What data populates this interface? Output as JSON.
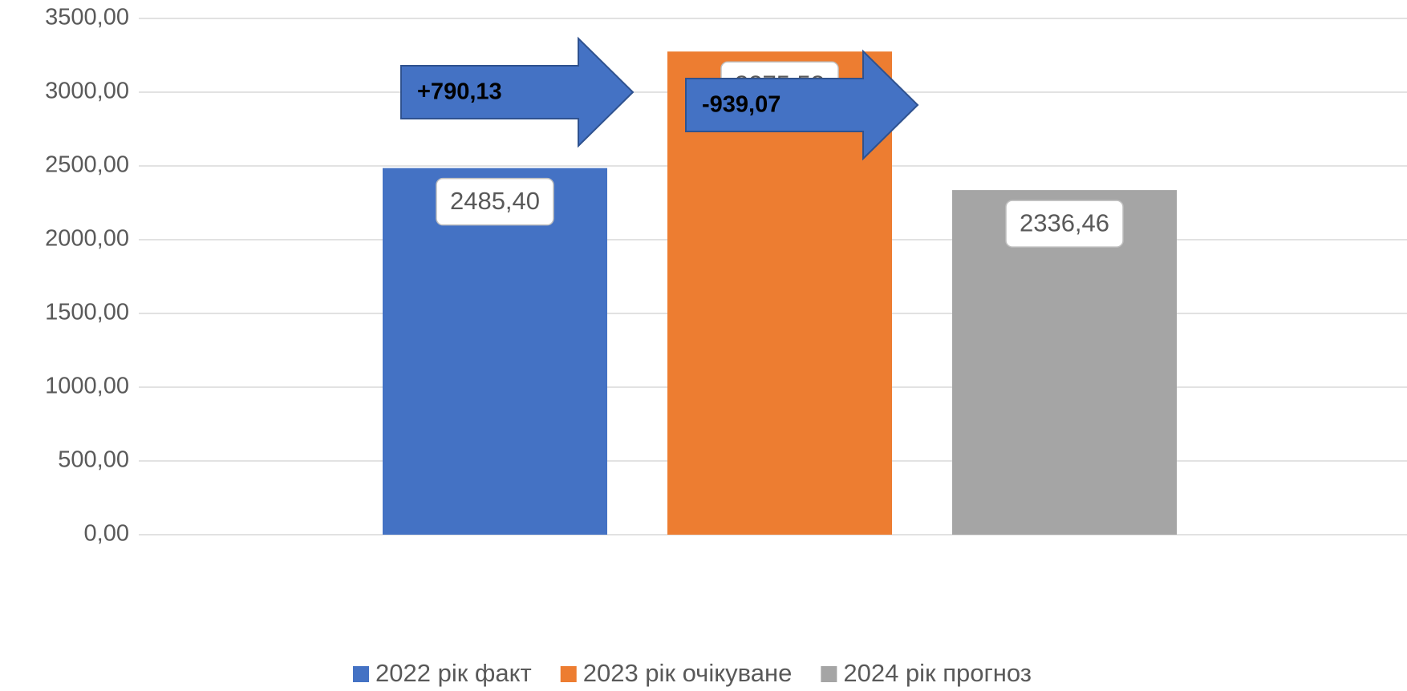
{
  "chart_data": {
    "type": "bar",
    "series": [
      {
        "name": "2022 рік факт",
        "color": "#4472c4",
        "values": [
          2485.4
        ],
        "value_labels": [
          "2485,40"
        ]
      },
      {
        "name": "2023 рік очікуване",
        "color": "#ed7d31",
        "values": [
          3275.53
        ],
        "value_labels": [
          "3275,53"
        ]
      },
      {
        "name": "2024 рік прогноз",
        "color": "#a5a5a5",
        "values": [
          2336.46
        ],
        "value_labels": [
          "2336,46"
        ]
      }
    ],
    "annotations": [
      "+790,13",
      "-939,07"
    ],
    "ylim": [
      0,
      3500
    ],
    "yticks": [
      {
        "value": 0,
        "label": "0,00"
      },
      {
        "value": 500,
        "label": "500,00"
      },
      {
        "value": 1000,
        "label": "1000,00"
      },
      {
        "value": 1500,
        "label": "1500,00"
      },
      {
        "value": 2000,
        "label": "2000,00"
      },
      {
        "value": 2500,
        "label": "2500,00"
      },
      {
        "value": 3000,
        "label": "3000,00"
      },
      {
        "value": 3500,
        "label": "3500,00"
      }
    ],
    "grid": true,
    "legend": "bottom"
  }
}
